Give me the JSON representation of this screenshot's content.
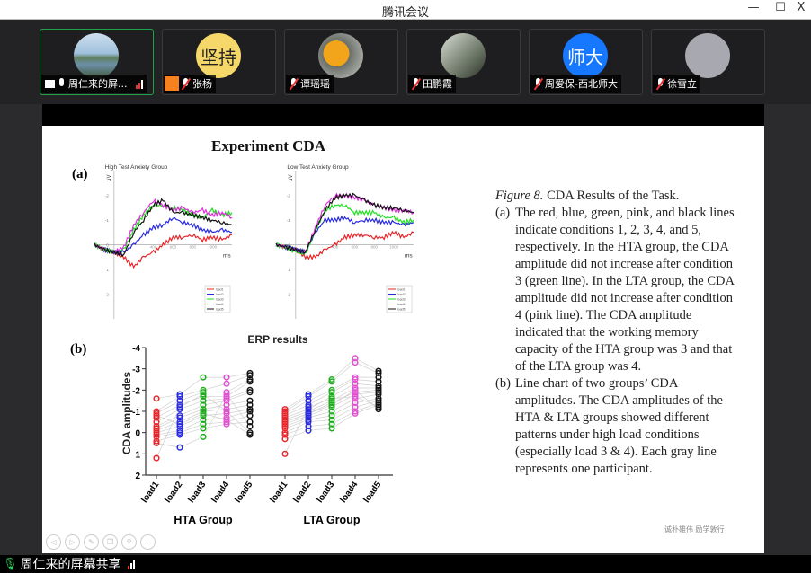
{
  "window": {
    "title": "腾讯会议",
    "minimize": "—",
    "maximize": "☐",
    "close": "X"
  },
  "participants": [
    {
      "name": "周仁来的屏...",
      "mic": "on",
      "sharing": true,
      "signal": true,
      "avatar": "lake-photo",
      "active": true
    },
    {
      "name": "张杨",
      "mic": "muted",
      "avatar_text": "坚持",
      "avatar_color": "#f6d86a",
      "user_icon": true
    },
    {
      "name": "谭瑶瑶",
      "mic": "muted",
      "avatar": "yellow-hat-photo"
    },
    {
      "name": "田鹏霞",
      "mic": "muted",
      "avatar": "building-photo"
    },
    {
      "name": "周爱保-西北师大",
      "mic": "muted",
      "avatar_text": "师大",
      "avatar_color": "#1677ff"
    },
    {
      "name": "徐雪立",
      "mic": "muted",
      "avatar": "moon-photo"
    }
  ],
  "slide": {
    "title": "Experiment CDA",
    "label_a": "(a)",
    "label_b": "(b)",
    "caption": {
      "figure": "Figure 8.",
      "title": " CDA Results of the Task.",
      "a_label": "(a)",
      "a_text": "The red, blue, green, pink, and black lines indicate conditions 1, 2, 3, 4, and 5, respectively. In the HTA group, the CDA amplitude did not increase after condition 3 (green line). In the LTA group, the CDA amplitude did not increase after condition 4 (pink line). The CDA amplitude indicated that the working memory capacity of the HTA group was 3 and that of the LTA group was 4.",
      "b_label": "(b)",
      "b_text": "Line chart of two groups’ CDA amplitudes. The CDA amplitudes of the HTA & LTA groups showed different patterns under high load conditions (especially load 3 & 4). Each gray line represents one participant."
    },
    "motto": "诚朴雄伟  励学敦行",
    "tools": [
      "prev",
      "play",
      "pen",
      "copy",
      "zoom",
      "more"
    ]
  },
  "chart_data": [
    {
      "type": "line",
      "title": "High Test Anxiety Group",
      "ylabel": "μV",
      "xlabel": "ms",
      "xlim": [
        -200,
        1200
      ],
      "ylim": [
        -3,
        3
      ],
      "y_reversed": true,
      "xticks": [
        400,
        600,
        800,
        1000
      ],
      "yticks": [
        -2,
        -1,
        0,
        1,
        2
      ],
      "x": [
        -200,
        -100,
        0,
        100,
        200,
        300,
        400,
        500,
        600,
        700,
        800,
        900,
        1000,
        1100,
        1200
      ],
      "series": [
        {
          "name": "load1",
          "color": "#e8262a",
          "values": [
            0,
            0.2,
            0.3,
            0.5,
            0.9,
            0.5,
            0.3,
            0,
            -0.3,
            -0.3,
            -0.4,
            -0.2,
            -0.3,
            -0.2,
            -0.4
          ]
        },
        {
          "name": "load2",
          "color": "#2a2ae0",
          "values": [
            0,
            0.2,
            0.3,
            0.3,
            0,
            -0.4,
            -0.7,
            -0.8,
            -1.1,
            -0.9,
            -0.8,
            -0.6,
            -0.5,
            -0.6,
            -0.5
          ]
        },
        {
          "name": "load3",
          "color": "#1fe01f",
          "values": [
            0,
            0.2,
            0.3,
            0.2,
            -0.6,
            -1.2,
            -1.6,
            -1.6,
            -1.5,
            -1.4,
            -1.2,
            -1.1,
            -1.4,
            -1.2,
            -1.3
          ]
        },
        {
          "name": "load4",
          "color": "#e030e0",
          "values": [
            0,
            0.2,
            0.3,
            0.1,
            -0.8,
            -1.3,
            -1.8,
            -1.6,
            -1.4,
            -1.5,
            -1.3,
            -1.4,
            -1.2,
            -1.3,
            -1.1
          ]
        },
        {
          "name": "load5",
          "color": "#111111",
          "values": [
            0,
            0.2,
            0.3,
            0.4,
            -0.5,
            -1.0,
            -1.6,
            -1.8,
            -1.3,
            -1.3,
            -1.2,
            -1.1,
            -1.0,
            -0.9,
            -0.8
          ]
        }
      ]
    },
    {
      "type": "line",
      "title": "Low Test Anxiety Group",
      "ylabel": "μV",
      "xlabel": "ms",
      "xlim": [
        -200,
        1200
      ],
      "ylim": [
        -3,
        3
      ],
      "y_reversed": true,
      "xticks": [
        400,
        600,
        800,
        1000
      ],
      "yticks": [
        -2,
        -1,
        0,
        1,
        2
      ],
      "x": [
        -200,
        -100,
        0,
        100,
        200,
        300,
        400,
        500,
        600,
        700,
        800,
        900,
        1000,
        1100,
        1200
      ],
      "series": [
        {
          "name": "load1",
          "color": "#e8262a",
          "values": [
            0,
            0.1,
            0.2,
            0.5,
            0.5,
            0.2,
            0,
            -0.3,
            -0.4,
            -0.4,
            -0.3,
            -0.3,
            -0.5,
            -0.3,
            -0.5
          ]
        },
        {
          "name": "load2",
          "color": "#2a2ae0",
          "values": [
            0,
            0.1,
            0.2,
            0.3,
            -0.5,
            -1.0,
            -1.0,
            -1.1,
            -0.9,
            -1.0,
            -1.0,
            -0.9,
            -0.9,
            -0.8,
            -0.9
          ]
        },
        {
          "name": "load3",
          "color": "#1fe01f",
          "values": [
            0,
            0.1,
            0.3,
            0.4,
            -0.6,
            -1.4,
            -1.6,
            -1.6,
            -1.3,
            -1.3,
            -1.3,
            -1.1,
            -1.1,
            -0.9,
            -1.0
          ]
        },
        {
          "name": "load4",
          "color": "#e030e0",
          "values": [
            0,
            0.1,
            0.2,
            0.3,
            -0.7,
            -1.6,
            -2.0,
            -2.0,
            -1.9,
            -1.8,
            -1.6,
            -1.5,
            -1.4,
            -1.4,
            -1.3
          ]
        },
        {
          "name": "load5",
          "color": "#111111",
          "values": [
            0,
            0.1,
            0.2,
            0.3,
            -0.6,
            -1.4,
            -1.9,
            -2.0,
            -2.0,
            -1.8,
            -1.6,
            -1.5,
            -1.5,
            -1.4,
            -1.3
          ]
        }
      ]
    },
    {
      "type": "scatter",
      "title": "ERP results",
      "ylabel": "CDA amplitudes",
      "ylim": [
        -4,
        2
      ],
      "y_reversed": true,
      "yticks": [
        -4,
        -3,
        -2,
        -1,
        0,
        1,
        2
      ],
      "categories": [
        "load1",
        "load2",
        "load3",
        "load4",
        "load5"
      ],
      "colors": [
        "#e8262a",
        "#2a2ae0",
        "#1faa1f",
        "#e050d0",
        "#111111"
      ],
      "groups": [
        {
          "name": "HTA Group",
          "loads": [
            [
              -1.6,
              -1.0,
              -0.9,
              -0.7,
              -0.5,
              -0.3,
              -0.2,
              -0.1,
              0,
              0.1,
              0.2,
              0.4,
              0.5,
              1.2,
              -0.8
            ],
            [
              -1.8,
              -1.7,
              -1.5,
              -1.3,
              -1.1,
              -0.8,
              -0.7,
              -0.5,
              -0.3,
              -0.1,
              0,
              0.1,
              0.7,
              -1.2,
              -0.4
            ],
            [
              -2.6,
              -2.0,
              -1.9,
              -1.7,
              -1.5,
              -1.3,
              -1.1,
              -1.0,
              -0.8,
              -0.6,
              -0.4,
              -0.2,
              0.2,
              -1.8,
              -0.9
            ],
            [
              -2.6,
              -2.3,
              -1.9,
              -1.7,
              -1.6,
              -1.5,
              -1.3,
              -1.1,
              -0.9,
              -0.7,
              -0.5,
              -0.4,
              -1.8,
              -1.0,
              -0.6
            ],
            [
              -2.8,
              -2.7,
              -2.5,
              -2.4,
              -2.0,
              -1.9,
              -1.5,
              -1.3,
              -1.1,
              -1.0,
              -0.8,
              -0.5,
              -0.3,
              0,
              0.1
            ]
          ]
        },
        {
          "name": "LTA Group",
          "loads": [
            [
              -1.1,
              -1.0,
              -0.9,
              -0.8,
              -0.7,
              -0.6,
              -0.5,
              -0.4,
              -0.3,
              -0.2,
              0,
              0.1,
              0.3,
              1.0,
              -0.5
            ],
            [
              -1.8,
              -1.7,
              -1.5,
              -1.3,
              -1.1,
              -1.0,
              -0.9,
              -0.8,
              -0.7,
              -0.6,
              -0.5,
              -0.3,
              -0.1,
              -1.2,
              -0.9
            ],
            [
              -2.5,
              -2.4,
              -2.0,
              -1.9,
              -1.7,
              -1.5,
              -1.4,
              -1.2,
              -1.0,
              -0.8,
              -0.6,
              -0.4,
              -0.2,
              -1.6,
              -1.3
            ],
            [
              -3.5,
              -3.3,
              -2.6,
              -2.5,
              -2.3,
              -2.1,
              -1.9,
              -1.8,
              -1.6,
              -1.4,
              -1.2,
              -1.0,
              -0.9,
              -1.7,
              -2.0
            ],
            [
              -2.9,
              -2.8,
              -2.6,
              -2.4,
              -2.2,
              -2.1,
              -2.0,
              -1.9,
              -1.8,
              -1.6,
              -1.5,
              -1.4,
              -1.3,
              -1.2,
              -1.1
            ]
          ]
        }
      ]
    }
  ],
  "footer": {
    "share_label": "周仁来的屏幕共享"
  }
}
